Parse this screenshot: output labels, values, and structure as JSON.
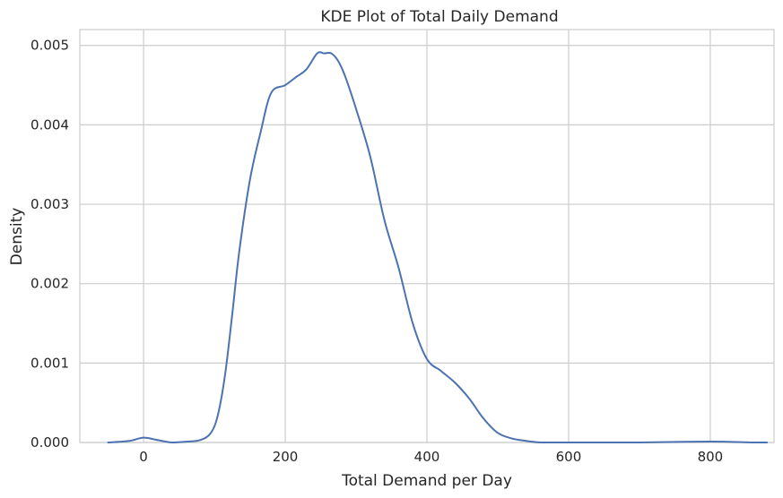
{
  "chart_data": {
    "type": "line",
    "title": "KDE Plot of Total Daily Demand",
    "xlabel": "Total Demand per Day",
    "ylabel": "Density",
    "xlim": [
      -90,
      890
    ],
    "ylim": [
      0,
      0.0052
    ],
    "xticks": [
      0,
      200,
      400,
      600,
      800
    ],
    "xtick_labels": [
      "0",
      "200",
      "400",
      "600",
      "800"
    ],
    "yticks": [
      0.0,
      0.001,
      0.002,
      0.003,
      0.004,
      0.005
    ],
    "ytick_labels": [
      "0.000",
      "0.001",
      "0.002",
      "0.003",
      "0.004",
      "0.005"
    ],
    "grid": true,
    "line_color": "#4c72b0",
    "series": [
      {
        "x": [
          -50,
          -20,
          0,
          20,
          40,
          60,
          80,
          95,
          105,
          115,
          125,
          135,
          150,
          165,
          180,
          200,
          215,
          230,
          245,
          255,
          265,
          275,
          285,
          300,
          320,
          340,
          360,
          380,
          400,
          420,
          440,
          460,
          480,
          500,
          520,
          540,
          560,
          600,
          700,
          780,
          820,
          860,
          880
        ],
        "y": [
          0.0,
          2e-05,
          6e-05,
          3e-05,
          0.0,
          1e-05,
          3e-05,
          0.00012,
          0.00035,
          0.00085,
          0.0016,
          0.0024,
          0.0033,
          0.0039,
          0.0044,
          0.0045,
          0.0046,
          0.0047,
          0.0049,
          0.0049,
          0.0049,
          0.0048,
          0.0046,
          0.0042,
          0.0036,
          0.0028,
          0.0022,
          0.0015,
          0.00105,
          0.0009,
          0.00075,
          0.00055,
          0.0003,
          0.00012,
          5e-05,
          2e-05,
          0.0,
          0.0,
          0.0,
          1e-05,
          1e-05,
          0.0,
          0.0
        ]
      }
    ]
  }
}
